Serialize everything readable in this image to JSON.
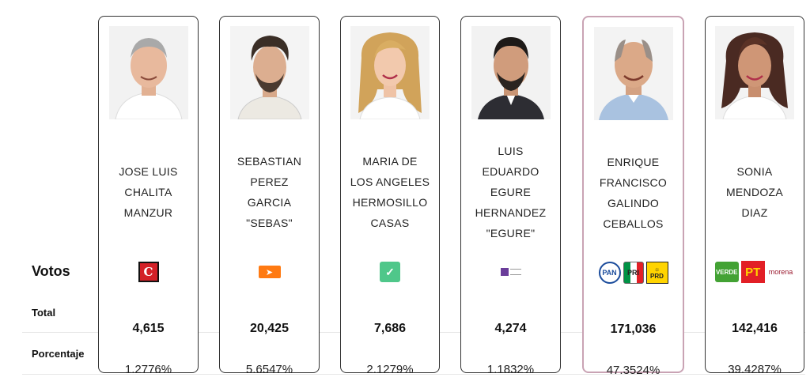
{
  "labels": {
    "votos": "Votos",
    "total": "Total",
    "porcentaje": "Porcentaje"
  },
  "colors": {
    "card_border": "#333333",
    "winner_border": "#c9a3b4",
    "divider": "#e6e6e6"
  },
  "candidates": [
    {
      "name_lines": [
        "JOSE LUIS",
        "CHALITA",
        "MANZUR"
      ],
      "parties": [
        {
          "name": "Partido Cardenista",
          "icon": "c-cardenista-icon",
          "color": "#d32027"
        }
      ],
      "total": "4,615",
      "porcentaje": "1.2776%"
    },
    {
      "name_lines": [
        "SEBASTIAN",
        "PEREZ",
        "GARCIA",
        "\"SEBAS\""
      ],
      "parties": [
        {
          "name": "Movimiento Ciudadano",
          "icon": "movimiento-ciudadano-icon",
          "color": "#ff7a12"
        }
      ],
      "total": "20,425",
      "porcentaje": "5.6547%"
    },
    {
      "name_lines": [
        "MARIA DE",
        "LOS ANGELES",
        "HERMOSILLO",
        "CASAS"
      ],
      "parties": [
        {
          "name": "Vía Radical",
          "icon": "checkmark-party-icon",
          "color": "#4fc78a"
        }
      ],
      "total": "7,686",
      "porcentaje": "2.1279%"
    },
    {
      "name_lines": [
        "LUIS",
        "EDUARDO",
        "EGURE",
        "HERNANDEZ",
        "\"EGURE\""
      ],
      "parties": [
        {
          "name": "PES",
          "icon": "pes-icon",
          "color": "#6a3d9a"
        }
      ],
      "total": "4,274",
      "porcentaje": "1.1832%"
    },
    {
      "name_lines": [
        "ENRIQUE",
        "FRANCISCO",
        "GALINDO",
        "CEBALLOS"
      ],
      "winner": true,
      "parties": [
        {
          "name": "PAN",
          "icon": "pan-icon",
          "color": "#1b4c9c"
        },
        {
          "name": "PRI",
          "icon": "pri-icon",
          "color": "#009245"
        },
        {
          "name": "PRD",
          "icon": "prd-icon",
          "color": "#ffd400"
        }
      ],
      "total": "171,036",
      "porcentaje": "47.3524%"
    },
    {
      "name_lines": [
        "SONIA",
        "MENDOZA",
        "DIAZ"
      ],
      "parties": [
        {
          "name": "VERDE",
          "icon": "verde-icon",
          "color": "#43a234"
        },
        {
          "name": "PT",
          "icon": "pt-icon",
          "color": "#e21f26"
        },
        {
          "name": "morena",
          "icon": "morena-icon",
          "color": "#9b1b30"
        }
      ],
      "total": "142,416",
      "porcentaje": "39.4287%"
    }
  ]
}
